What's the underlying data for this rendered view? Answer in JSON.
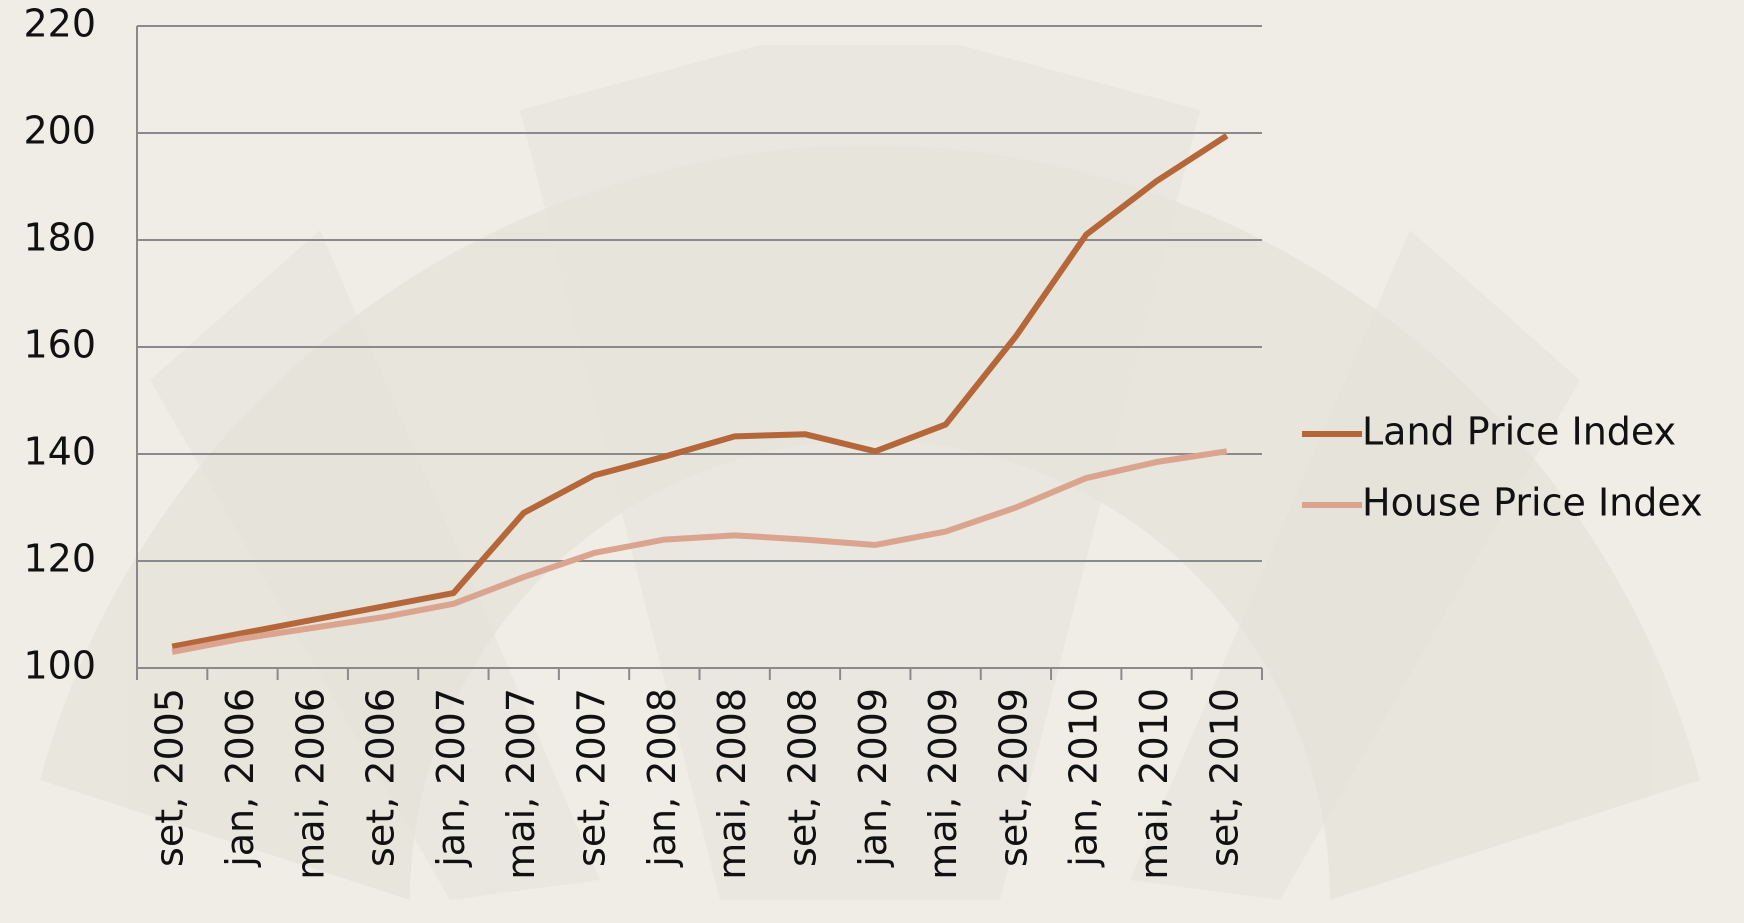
{
  "chart_data": {
    "type": "line",
    "categories": [
      "set, 2005",
      "jan, 2006",
      "mai, 2006",
      "set, 2006",
      "jan, 2007",
      "mai, 2007",
      "set, 2007",
      "jan, 2008",
      "mai, 2008",
      "set, 2008",
      "jan, 2009",
      "mai, 2009",
      "set, 2009",
      "jan, 2010",
      "mai, 2010",
      "set, 2010"
    ],
    "series": [
      {
        "name": "Land Price Index",
        "color": "#b5673a",
        "values": [
          104,
          106.5,
          109,
          111.5,
          114,
          129,
          136,
          139.5,
          143.3,
          143.7,
          140.5,
          145.5,
          162,
          181,
          191,
          199.5
        ]
      },
      {
        "name": "House Price Index",
        "color": "#dba48e",
        "values": [
          103,
          105.5,
          107.5,
          109.5,
          112,
          117,
          121.5,
          124,
          124.8,
          124,
          123,
          125.5,
          130,
          135.5,
          138.5,
          140.5
        ]
      }
    ],
    "ylim": [
      100,
      220
    ],
    "yticks": [
      100,
      120,
      140,
      160,
      180,
      200,
      220
    ],
    "grid": true,
    "legend": "right"
  }
}
